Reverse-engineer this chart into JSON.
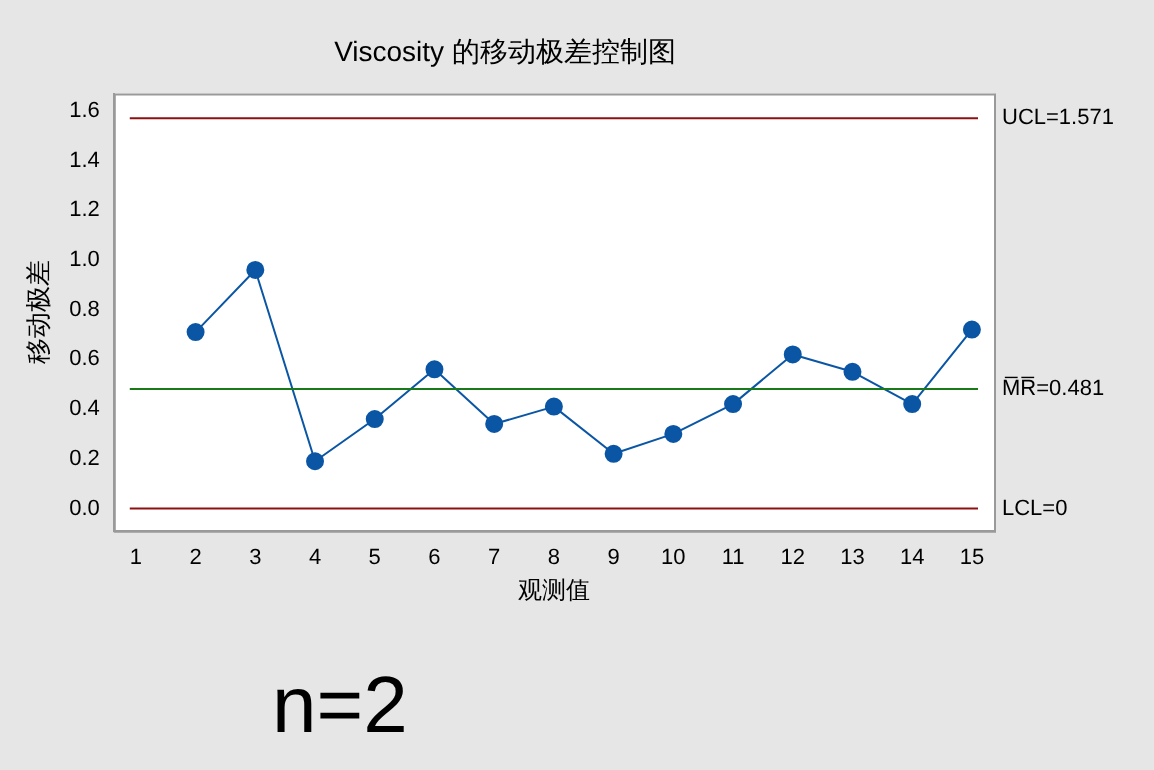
{
  "chart_data": {
    "type": "line",
    "title": "Viscosity 的移动极差控制图",
    "xlabel": "观测值",
    "ylabel": "移动极差",
    "x": [
      2,
      3,
      4,
      5,
      6,
      7,
      8,
      9,
      10,
      11,
      12,
      13,
      14,
      15
    ],
    "series": [
      {
        "color": "#0a56a5",
        "values": [
          0.71,
          0.96,
          0.19,
          0.36,
          0.56,
          0.34,
          0.41,
          0.22,
          0.3,
          0.42,
          0.62,
          0.55,
          0.42,
          0.72
        ]
      }
    ],
    "xlim": [
      0.63,
      15.37
    ],
    "xticks": [
      1,
      2,
      3,
      4,
      5,
      6,
      7,
      8,
      9,
      10,
      11,
      12,
      13,
      14,
      15
    ],
    "ylim": [
      -0.09,
      1.67
    ],
    "yticks": [
      {
        "value": 0,
        "label": "0.0"
      },
      {
        "value": 0.2,
        "label": "0.2"
      },
      {
        "value": 0.4,
        "label": "0.4"
      },
      {
        "value": 0.6,
        "label": "0.6"
      },
      {
        "value": 0.8,
        "label": "0.8"
      },
      {
        "value": 1,
        "label": "1.0"
      },
      {
        "value": 1.2,
        "label": "1.2"
      },
      {
        "value": 1.4,
        "label": "1.4"
      },
      {
        "value": 1.6,
        "label": "1.6"
      }
    ],
    "ref_lines": [
      {
        "axis": "y",
        "value": 1.571,
        "label": "UCL=1.571",
        "color": "#8b1010"
      },
      {
        "axis": "y",
        "value": 0.481,
        "label": "M̅R̅=0.481",
        "color": "#1a7a1a"
      },
      {
        "axis": "y",
        "value": 0,
        "label": "LCL=0",
        "color": "#8b1010"
      }
    ],
    "annotations": [
      "n=2"
    ],
    "grid": false,
    "legend": false,
    "marker": "circle",
    "line_style": "solid"
  }
}
